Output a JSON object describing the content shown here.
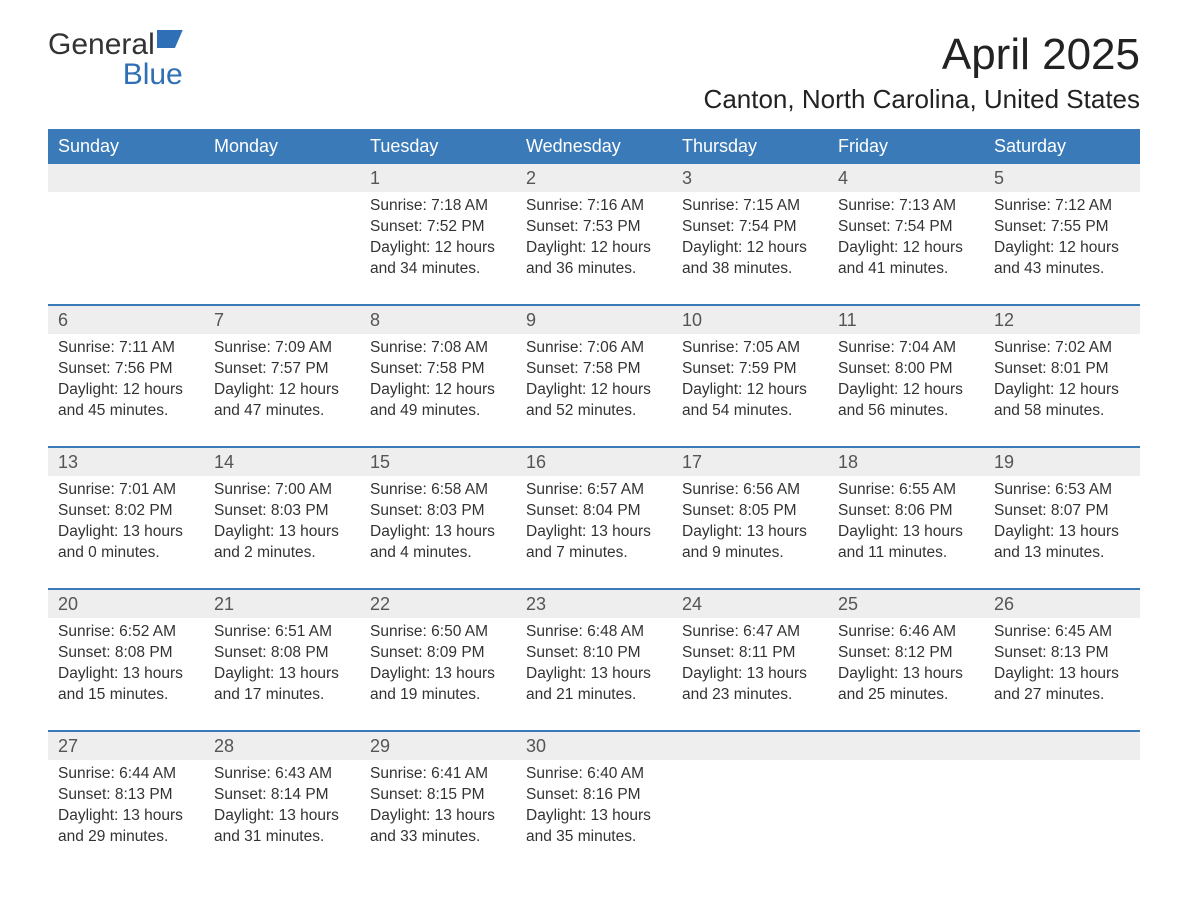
{
  "brand": {
    "word1": "General",
    "word2": "Blue"
  },
  "title": "April 2025",
  "location": "Canton, North Carolina, United States",
  "colors": {
    "header_bg": "#3a7ab8",
    "header_text": "#ffffff",
    "daynum_bg": "#eeeeee",
    "border": "#3a7ab8",
    "body_text": "#333333",
    "brand_blue": "#2f6fb5"
  },
  "dayHeaders": [
    "Sunday",
    "Monday",
    "Tuesday",
    "Wednesday",
    "Thursday",
    "Friday",
    "Saturday"
  ],
  "weeks": [
    [
      {
        "num": "",
        "sunrise": "",
        "sunset": "",
        "daylight": ""
      },
      {
        "num": "",
        "sunrise": "",
        "sunset": "",
        "daylight": ""
      },
      {
        "num": "1",
        "sunrise": "7:18 AM",
        "sunset": "7:52 PM",
        "daylight": "12 hours and 34 minutes."
      },
      {
        "num": "2",
        "sunrise": "7:16 AM",
        "sunset": "7:53 PM",
        "daylight": "12 hours and 36 minutes."
      },
      {
        "num": "3",
        "sunrise": "7:15 AM",
        "sunset": "7:54 PM",
        "daylight": "12 hours and 38 minutes."
      },
      {
        "num": "4",
        "sunrise": "7:13 AM",
        "sunset": "7:54 PM",
        "daylight": "12 hours and 41 minutes."
      },
      {
        "num": "5",
        "sunrise": "7:12 AM",
        "sunset": "7:55 PM",
        "daylight": "12 hours and 43 minutes."
      }
    ],
    [
      {
        "num": "6",
        "sunrise": "7:11 AM",
        "sunset": "7:56 PM",
        "daylight": "12 hours and 45 minutes."
      },
      {
        "num": "7",
        "sunrise": "7:09 AM",
        "sunset": "7:57 PM",
        "daylight": "12 hours and 47 minutes."
      },
      {
        "num": "8",
        "sunrise": "7:08 AM",
        "sunset": "7:58 PM",
        "daylight": "12 hours and 49 minutes."
      },
      {
        "num": "9",
        "sunrise": "7:06 AM",
        "sunset": "7:58 PM",
        "daylight": "12 hours and 52 minutes."
      },
      {
        "num": "10",
        "sunrise": "7:05 AM",
        "sunset": "7:59 PM",
        "daylight": "12 hours and 54 minutes."
      },
      {
        "num": "11",
        "sunrise": "7:04 AM",
        "sunset": "8:00 PM",
        "daylight": "12 hours and 56 minutes."
      },
      {
        "num": "12",
        "sunrise": "7:02 AM",
        "sunset": "8:01 PM",
        "daylight": "12 hours and 58 minutes."
      }
    ],
    [
      {
        "num": "13",
        "sunrise": "7:01 AM",
        "sunset": "8:02 PM",
        "daylight": "13 hours and 0 minutes."
      },
      {
        "num": "14",
        "sunrise": "7:00 AM",
        "sunset": "8:03 PM",
        "daylight": "13 hours and 2 minutes."
      },
      {
        "num": "15",
        "sunrise": "6:58 AM",
        "sunset": "8:03 PM",
        "daylight": "13 hours and 4 minutes."
      },
      {
        "num": "16",
        "sunrise": "6:57 AM",
        "sunset": "8:04 PM",
        "daylight": "13 hours and 7 minutes."
      },
      {
        "num": "17",
        "sunrise": "6:56 AM",
        "sunset": "8:05 PM",
        "daylight": "13 hours and 9 minutes."
      },
      {
        "num": "18",
        "sunrise": "6:55 AM",
        "sunset": "8:06 PM",
        "daylight": "13 hours and 11 minutes."
      },
      {
        "num": "19",
        "sunrise": "6:53 AM",
        "sunset": "8:07 PM",
        "daylight": "13 hours and 13 minutes."
      }
    ],
    [
      {
        "num": "20",
        "sunrise": "6:52 AM",
        "sunset": "8:08 PM",
        "daylight": "13 hours and 15 minutes."
      },
      {
        "num": "21",
        "sunrise": "6:51 AM",
        "sunset": "8:08 PM",
        "daylight": "13 hours and 17 minutes."
      },
      {
        "num": "22",
        "sunrise": "6:50 AM",
        "sunset": "8:09 PM",
        "daylight": "13 hours and 19 minutes."
      },
      {
        "num": "23",
        "sunrise": "6:48 AM",
        "sunset": "8:10 PM",
        "daylight": "13 hours and 21 minutes."
      },
      {
        "num": "24",
        "sunrise": "6:47 AM",
        "sunset": "8:11 PM",
        "daylight": "13 hours and 23 minutes."
      },
      {
        "num": "25",
        "sunrise": "6:46 AM",
        "sunset": "8:12 PM",
        "daylight": "13 hours and 25 minutes."
      },
      {
        "num": "26",
        "sunrise": "6:45 AM",
        "sunset": "8:13 PM",
        "daylight": "13 hours and 27 minutes."
      }
    ],
    [
      {
        "num": "27",
        "sunrise": "6:44 AM",
        "sunset": "8:13 PM",
        "daylight": "13 hours and 29 minutes."
      },
      {
        "num": "28",
        "sunrise": "6:43 AM",
        "sunset": "8:14 PM",
        "daylight": "13 hours and 31 minutes."
      },
      {
        "num": "29",
        "sunrise": "6:41 AM",
        "sunset": "8:15 PM",
        "daylight": "13 hours and 33 minutes."
      },
      {
        "num": "30",
        "sunrise": "6:40 AM",
        "sunset": "8:16 PM",
        "daylight": "13 hours and 35 minutes."
      },
      {
        "num": "",
        "sunrise": "",
        "sunset": "",
        "daylight": ""
      },
      {
        "num": "",
        "sunrise": "",
        "sunset": "",
        "daylight": ""
      },
      {
        "num": "",
        "sunrise": "",
        "sunset": "",
        "daylight": ""
      }
    ]
  ],
  "labels": {
    "sunrise": "Sunrise: ",
    "sunset": "Sunset: ",
    "daylight": "Daylight: "
  }
}
